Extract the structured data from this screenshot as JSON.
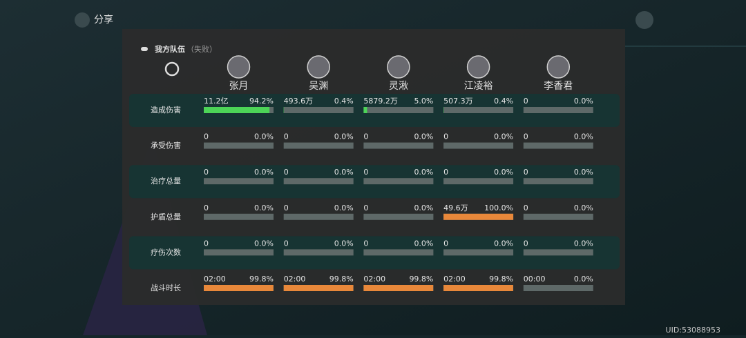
{
  "share": "分享",
  "team": {
    "title": "我方队伍",
    "status": "（失败）"
  },
  "players": [
    "张月",
    "吴渊",
    "灵湫",
    "江凌裕",
    "李香君"
  ],
  "rows": [
    {
      "label": "造成伤害",
      "bar_color": "#4cd457",
      "cells": [
        {
          "amount": "11.2亿",
          "share": 94.2,
          "share_label": "94.2%"
        },
        {
          "amount": "493.6万",
          "share": 0.4,
          "share_label": "0.4%"
        },
        {
          "amount": "5879.2万",
          "share": 5.0,
          "share_label": "5.0%"
        },
        {
          "amount": "507.3万",
          "share": 0.4,
          "share_label": "0.4%"
        },
        {
          "amount": "0",
          "share": 0,
          "share_label": "0.0%"
        }
      ]
    },
    {
      "label": "承受伤害",
      "bar_color": "#4cd457",
      "cells": [
        {
          "amount": "0",
          "share": 0,
          "share_label": "0.0%"
        },
        {
          "amount": "0",
          "share": 0,
          "share_label": "0.0%"
        },
        {
          "amount": "0",
          "share": 0,
          "share_label": "0.0%"
        },
        {
          "amount": "0",
          "share": 0,
          "share_label": "0.0%"
        },
        {
          "amount": "0",
          "share": 0,
          "share_label": "0.0%"
        }
      ]
    },
    {
      "label": "治疗总量",
      "bar_color": "#4cd457",
      "cells": [
        {
          "amount": "0",
          "share": 0,
          "share_label": "0.0%"
        },
        {
          "amount": "0",
          "share": 0,
          "share_label": "0.0%"
        },
        {
          "amount": "0",
          "share": 0,
          "share_label": "0.0%"
        },
        {
          "amount": "0",
          "share": 0,
          "share_label": "0.0%"
        },
        {
          "amount": "0",
          "share": 0,
          "share_label": "0.0%"
        }
      ]
    },
    {
      "label": "护盾总量",
      "bar_color": "#e8883a",
      "cells": [
        {
          "amount": "0",
          "share": 0,
          "share_label": "0.0%"
        },
        {
          "amount": "0",
          "share": 0,
          "share_label": "0.0%"
        },
        {
          "amount": "0",
          "share": 0,
          "share_label": "0.0%"
        },
        {
          "amount": "49.6万",
          "share": 100,
          "share_label": "100.0%"
        },
        {
          "amount": "0",
          "share": 0,
          "share_label": "0.0%"
        }
      ]
    },
    {
      "label": "疗伤次数",
      "bar_color": "#e8883a",
      "cells": [
        {
          "amount": "0",
          "share": 0,
          "share_label": "0.0%"
        },
        {
          "amount": "0",
          "share": 0,
          "share_label": "0.0%"
        },
        {
          "amount": "0",
          "share": 0,
          "share_label": "0.0%"
        },
        {
          "amount": "0",
          "share": 0,
          "share_label": "0.0%"
        },
        {
          "amount": "0",
          "share": 0,
          "share_label": "0.0%"
        }
      ]
    },
    {
      "label": "战斗时长",
      "bar_color": "#e8883a",
      "cells": [
        {
          "amount": "02:00",
          "share": 99.8,
          "share_label": "99.8%"
        },
        {
          "amount": "02:00",
          "share": 99.8,
          "share_label": "99.8%"
        },
        {
          "amount": "02:00",
          "share": 99.8,
          "share_label": "99.8%"
        },
        {
          "amount": "02:00",
          "share": 99.8,
          "share_label": "99.8%"
        },
        {
          "amount": "00:00",
          "share": 0,
          "share_label": "0.0%"
        }
      ]
    }
  ],
  "uid": "UID:53088953"
}
